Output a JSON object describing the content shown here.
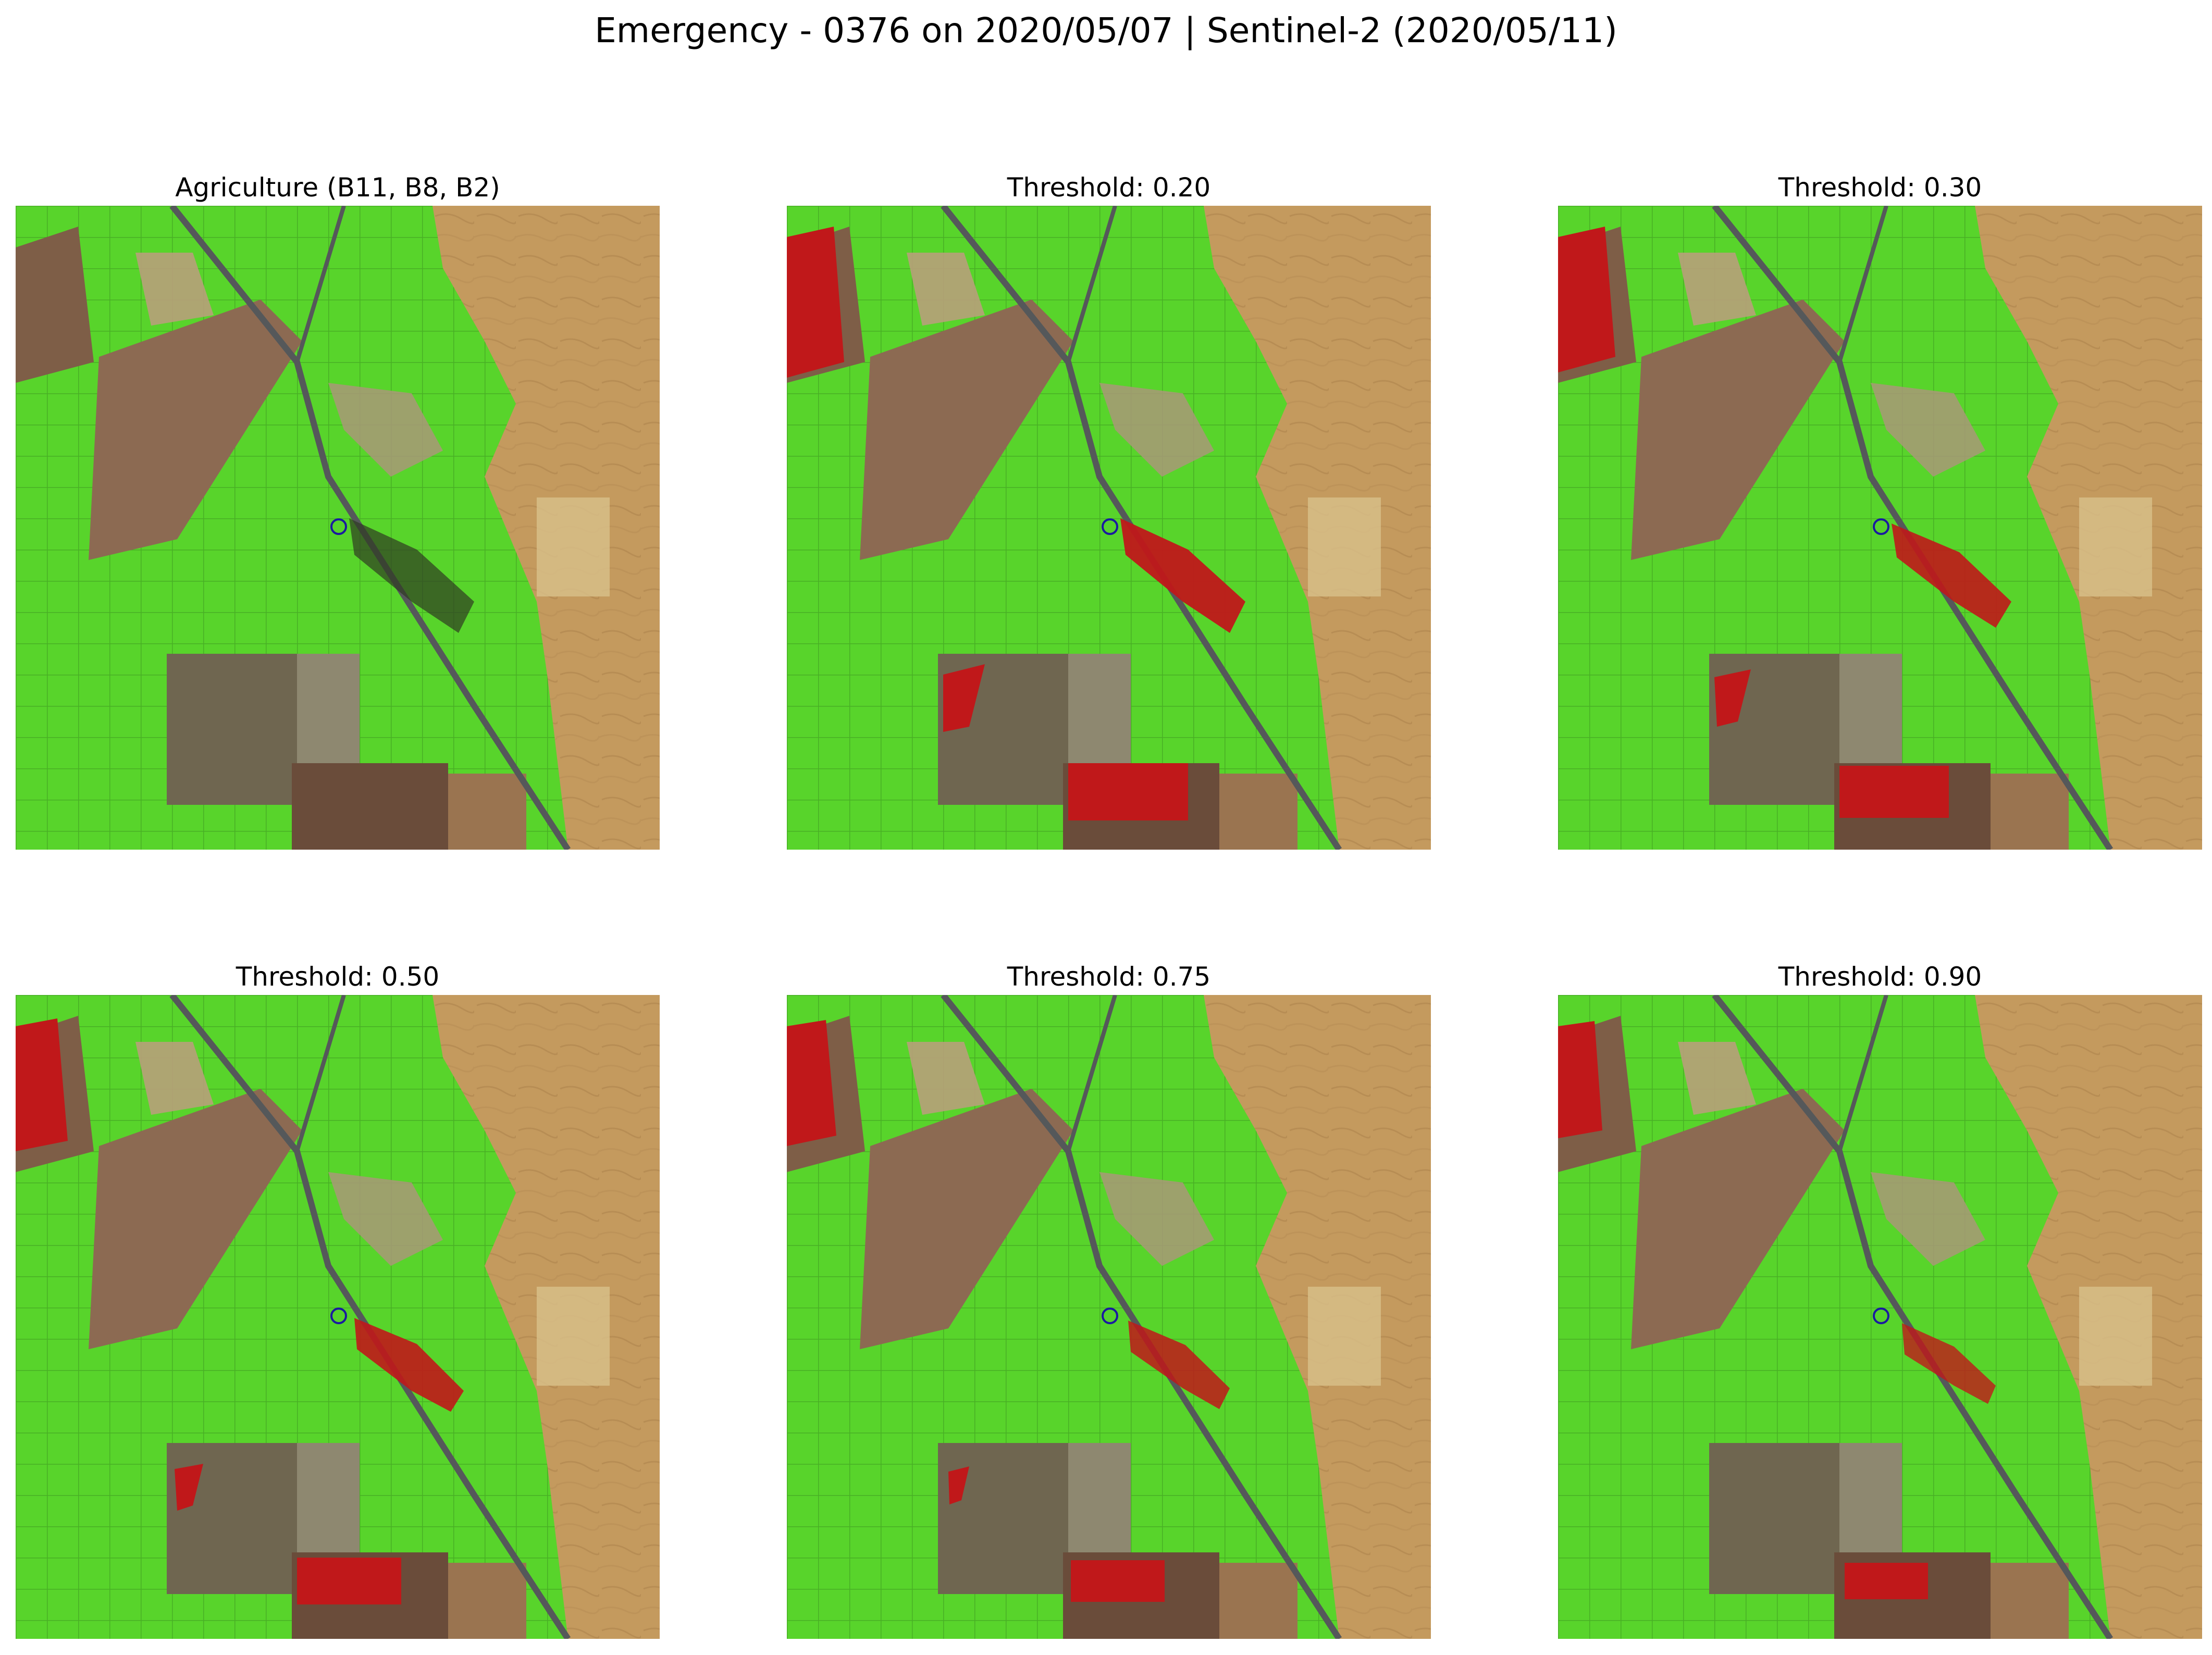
{
  "figure": {
    "title": "Emergency - 0376 on 2020/05/07 | Sentinel-2 (2020/05/11)"
  },
  "panels": [
    {
      "title": "Agriculture (B11, B8, B2)",
      "threshold": null
    },
    {
      "title": "Threshold: 0.20",
      "threshold": 0.2
    },
    {
      "title": "Threshold: 0.30",
      "threshold": 0.3
    },
    {
      "title": "Threshold: 0.50",
      "threshold": 0.5
    },
    {
      "title": "Threshold: 0.75",
      "threshold": 0.75
    },
    {
      "title": "Threshold: 0.90",
      "threshold": 0.9
    }
  ],
  "colors": {
    "vegetation": "#55d62a",
    "bare_soil": "#c29a60",
    "dark_field": "#6b5a45",
    "burn_mask": "#c0181a",
    "marker": "#1a1aa0"
  }
}
